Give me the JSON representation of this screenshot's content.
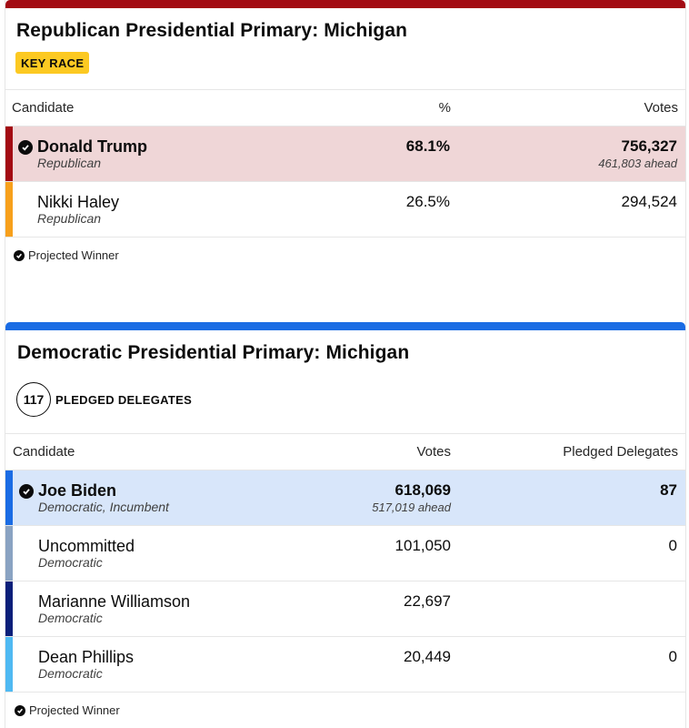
{
  "republican": {
    "title": "Republican Presidential Primary: Michigan",
    "badge": "KEY RACE",
    "headers": {
      "candidate": "Candidate",
      "pct": "%",
      "votes": "Votes"
    },
    "candidates": [
      {
        "name": "Donald Trump",
        "party": "Republican",
        "pct": "68.1%",
        "votes": "756,327",
        "ahead": "461,803 ahead",
        "winner": true,
        "color": "#a30b13"
      },
      {
        "name": "Nikki Haley",
        "party": "Republican",
        "pct": "26.5%",
        "votes": "294,524",
        "ahead": "",
        "winner": false,
        "color": "#f7a01c"
      }
    ],
    "footnote": "Projected Winner",
    "accent": "#a30b13"
  },
  "democratic": {
    "title": "Democratic Presidential Primary: Michigan",
    "delegates_count": "117",
    "delegates_label": "PLEDGED DELEGATES",
    "headers": {
      "candidate": "Candidate",
      "votes": "Votes",
      "delegates": "Pledged Delegates"
    },
    "candidates": [
      {
        "name": "Joe Biden",
        "party": "Democratic, Incumbent",
        "votes": "618,069",
        "ahead": "517,019 ahead",
        "delegates": "87",
        "winner": true,
        "color": "#1a6ce4"
      },
      {
        "name": "Uncommitted",
        "party": "Democratic",
        "votes": "101,050",
        "ahead": "",
        "delegates": "0",
        "winner": false,
        "color": "#8aa3c2"
      },
      {
        "name": "Marianne Williamson",
        "party": "Democratic",
        "votes": "22,697",
        "ahead": "",
        "delegates": "",
        "winner": false,
        "color": "#0a1f7a"
      },
      {
        "name": "Dean Phillips",
        "party": "Democratic",
        "votes": "20,449",
        "ahead": "",
        "delegates": "0",
        "winner": false,
        "color": "#4fb9f2"
      }
    ],
    "footnote": "Projected Winner",
    "accent": "#1a6ce4"
  },
  "icons": {
    "winner": "check-circle-icon"
  }
}
